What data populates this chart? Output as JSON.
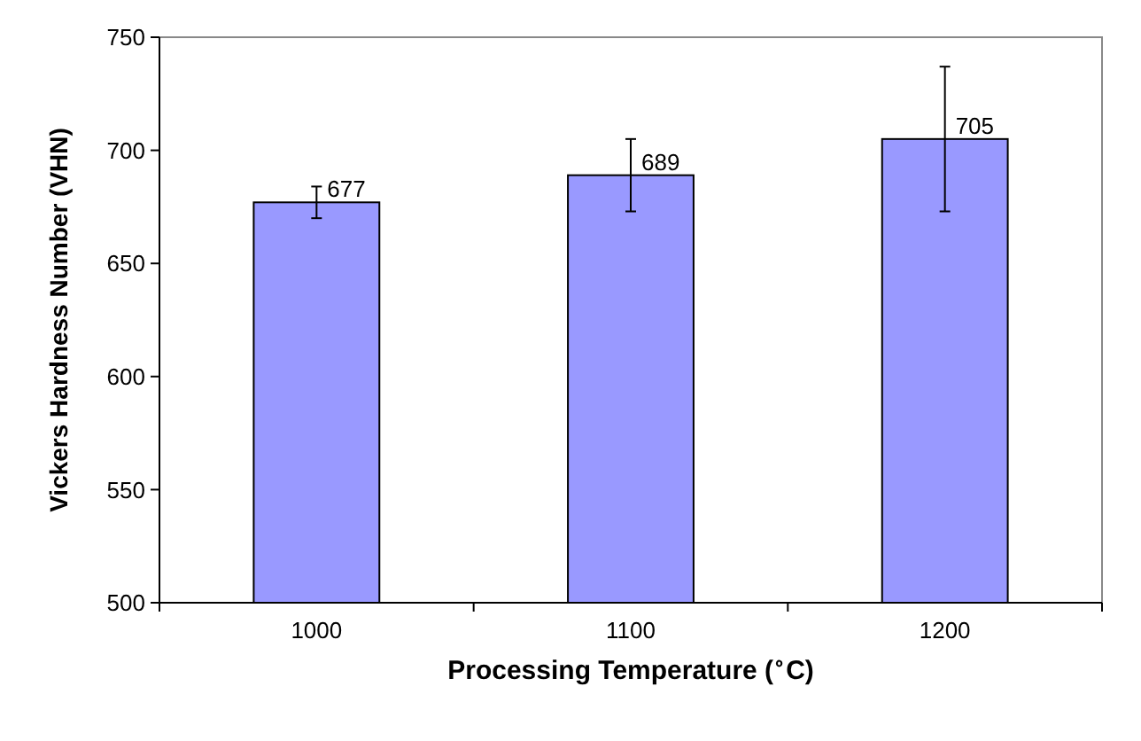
{
  "chart_data": {
    "type": "bar",
    "xlabel": "Processing Temperature ($^{∘}$C)",
    "ylabel": "Vickers Hardness Number (VHN)",
    "categories": [
      "1000",
      "1100",
      "1200"
    ],
    "values": [
      677,
      689,
      705
    ],
    "errors": [
      7,
      16,
      32
    ],
    "color": "#9999ff",
    "ylim": [
      500,
      750
    ],
    "yticks": [
      500,
      550,
      600,
      650,
      700,
      750
    ],
    "data_labels": true
  }
}
